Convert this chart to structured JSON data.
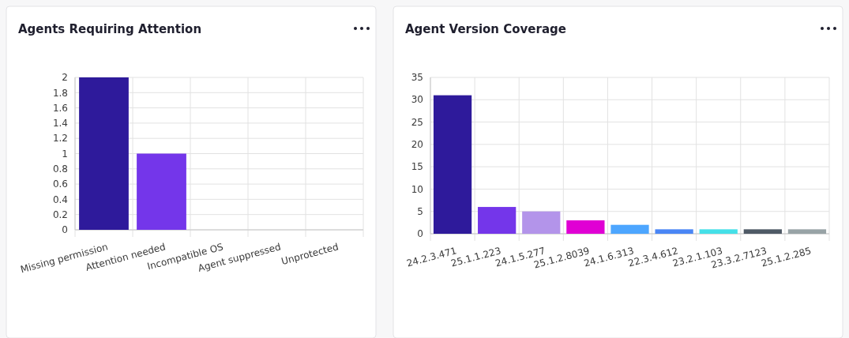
{
  "chart_data": [
    {
      "type": "bar",
      "title": "Agents Requiring Attention",
      "categories": [
        "Missing permission",
        "Attention needed",
        "Incompatible OS",
        "Agent suppressed",
        "Unprotected"
      ],
      "values": [
        2,
        1,
        0,
        0,
        0
      ],
      "colors": [
        "#2e1a9b",
        "#7436ea",
        "#b394ea",
        "#e000d4",
        "#4da6ff"
      ],
      "ylim": [
        0,
        2
      ],
      "yticks": [
        0,
        0.2,
        0.4,
        0.6,
        0.8,
        1,
        1.2,
        1.4,
        1.6,
        1.8,
        2
      ],
      "grid": true
    },
    {
      "type": "bar",
      "title": "Agent Version Coverage",
      "categories": [
        "24.2.3.471",
        "25.1.1.223",
        "24.1.5.277",
        "25.1.2.8039",
        "24.1.6.313",
        "22.3.4.612",
        "23.2.1.103",
        "23.3.2.7123",
        "25.1.2.285"
      ],
      "values": [
        31,
        6,
        5,
        3,
        2,
        1,
        1,
        1,
        1
      ],
      "colors": [
        "#2e1a9b",
        "#7436ea",
        "#b394ea",
        "#e000d4",
        "#4da6ff",
        "#4a86f5",
        "#45e0e8",
        "#4f5a66",
        "#98a3a6"
      ],
      "ylim": [
        0,
        35
      ],
      "yticks": [
        0,
        5,
        10,
        15,
        20,
        25,
        30,
        35
      ],
      "grid": true
    }
  ]
}
